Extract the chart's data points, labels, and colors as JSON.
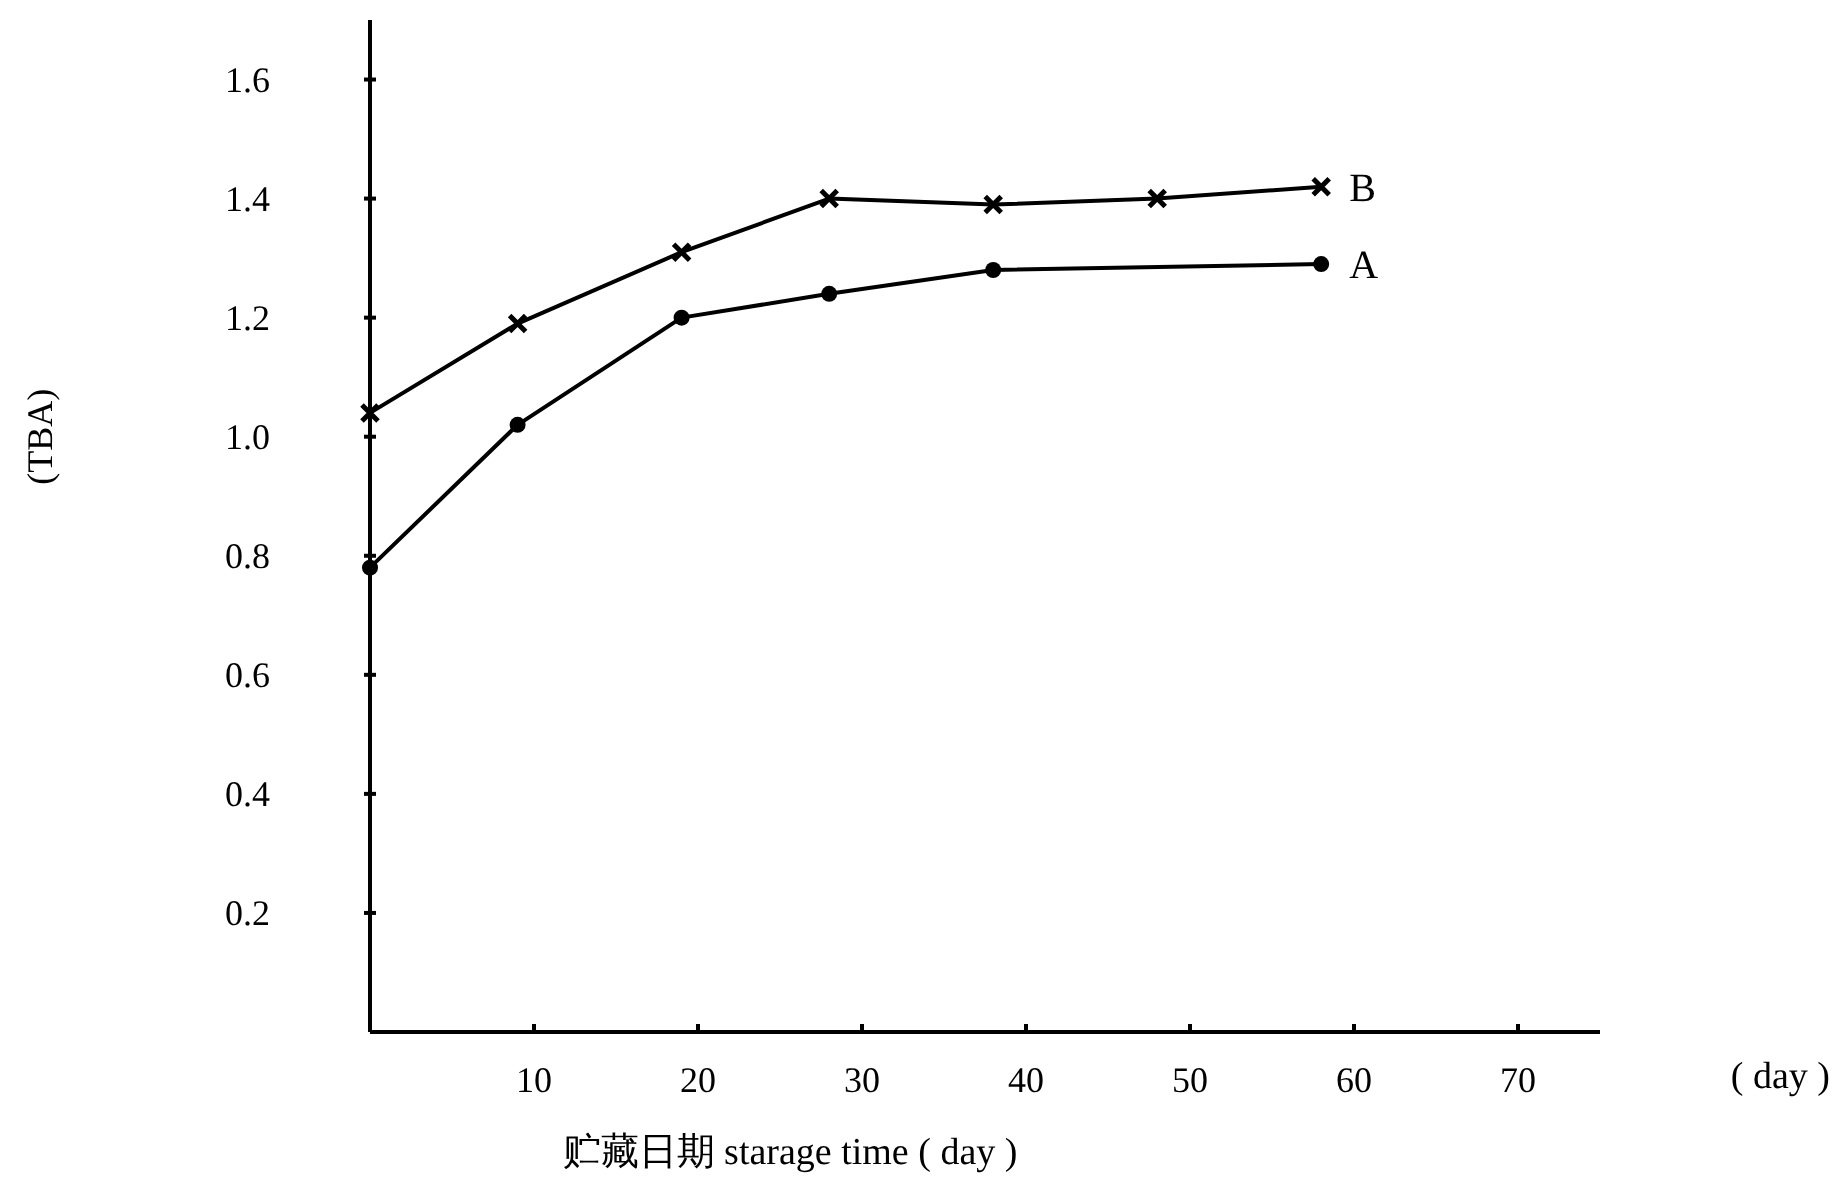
{
  "chart_data": {
    "type": "line",
    "xlabel": "贮藏日期 starage time ( day )",
    "ylabel": "(TBA)",
    "xlim": [
      0,
      75
    ],
    "ylim": [
      0,
      1.7
    ],
    "xticks": [
      10,
      20,
      30,
      40,
      50,
      60,
      70
    ],
    "yticks": [
      0.2,
      0.4,
      0.6,
      0.8,
      {
        "value": 1,
        "label": "1.0"
      },
      1.2,
      1.4,
      1.6
    ],
    "grid": false,
    "line_style": "solid",
    "annotations": [
      "( day )"
    ],
    "series": [
      {
        "name": "A",
        "color": "#000000",
        "marker": "circle",
        "x": [
          0,
          9,
          19,
          28,
          38,
          58
        ],
        "values": [
          0.78,
          1.02,
          1.2,
          1.24,
          1.28,
          1.29
        ]
      },
      {
        "name": "B",
        "color": "#000000",
        "marker": "cross",
        "x": [
          0,
          9,
          19,
          28,
          38,
          48,
          58
        ],
        "values": [
          1.04,
          1.19,
          1.31,
          1.4,
          1.39,
          1.4,
          1.42
        ]
      }
    ]
  }
}
